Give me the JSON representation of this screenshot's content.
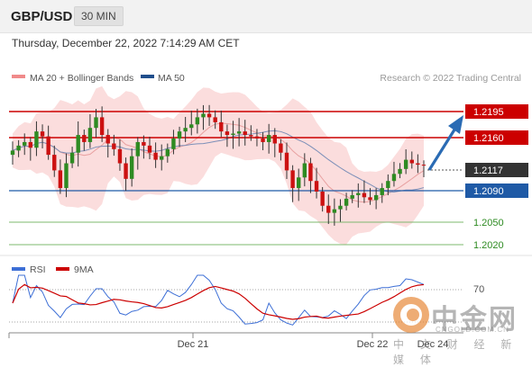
{
  "header": {
    "symbol": "GBP/USD",
    "timeframe": "30 MIN"
  },
  "datetime": "Thursday, December 22, 2022 7:14:29 AM CET",
  "legend": {
    "ma_bollinger": "MA 20 + Bollinger Bands",
    "ma50": "MA 50",
    "copyright": "Research © 2022 Trading Central"
  },
  "levels": [
    {
      "value": "1.2195",
      "style": "resistance"
    },
    {
      "value": "1.2160",
      "style": "resistance"
    },
    {
      "value": "1.2117",
      "style": "current"
    },
    {
      "value": "1.2090",
      "style": "pivot"
    },
    {
      "value": "1.2050",
      "style": "support"
    },
    {
      "value": "1.2020",
      "style": "support"
    }
  ],
  "rsi_panel": {
    "legend_rsi": "RSI",
    "legend_ma": "9MA",
    "level_70": "70"
  },
  "x_labels": [
    "Dec 21",
    "Dec 22",
    "Dec 24"
  ],
  "watermark": {
    "logo": "中金网",
    "url": "CNGOLD.COM.CN",
    "sub": "中 文 财 经 新 媒 体"
  },
  "colors": {
    "resistance": "#cc0000",
    "current": "#333333",
    "pivot": "#1f5aa6",
    "support": "#2e8b22",
    "bollinger": "#f7c8c8",
    "ma50": "#1f4e8c",
    "bull": "#2e8b22",
    "bear": "#cc1111",
    "rsi": "#3d6fd6",
    "rsi_ma": "#cc0000",
    "arrow": "#2a6bb4"
  },
  "chart_data": {
    "type": "line",
    "title": "GBP/USD",
    "timeframe": "30 MIN",
    "x_ticks": [
      "Dec 21",
      "Dec 22",
      "Dec 24"
    ],
    "price_levels": {
      "resistance": [
        1.2195,
        1.216
      ],
      "current": 1.2117,
      "pivot": 1.209,
      "support": [
        1.205,
        1.202
      ]
    },
    "ylim": [
      1.2005,
      1.223
    ],
    "series": [
      {
        "name": "GBP/USD",
        "close": [
          1.2138,
          1.2145,
          1.215,
          1.2142,
          1.2165,
          1.2158,
          1.2132,
          1.211,
          1.2085,
          1.212,
          1.2135,
          1.216,
          1.215,
          1.217,
          1.2185,
          1.216,
          1.2148,
          1.214,
          1.212,
          1.2098,
          1.213,
          1.215,
          1.2145,
          1.2135,
          1.2125,
          1.213,
          1.214,
          1.2155,
          1.2165,
          1.217,
          1.2175,
          1.2185,
          1.219,
          1.2185,
          1.2178,
          1.2165,
          1.216,
          1.2162,
          1.2165,
          1.216,
          1.2158,
          1.2155,
          1.215,
          1.216,
          1.2148,
          1.2135,
          1.211,
          1.2085,
          1.21,
          1.212,
          1.2095,
          1.208,
          1.206,
          1.205,
          1.2055,
          1.206,
          1.207,
          1.2075,
          1.2078,
          1.2072,
          1.2068,
          1.2075,
          1.2085,
          1.2095,
          1.2105,
          1.2112,
          1.2125,
          1.212,
          1.2118,
          1.2117
        ]
      },
      {
        "name": "MA 20 + Bollinger Bands"
      },
      {
        "name": "MA 50"
      },
      {
        "name": "RSI"
      },
      {
        "name": "9MA"
      }
    ],
    "rsi_level": 70
  }
}
